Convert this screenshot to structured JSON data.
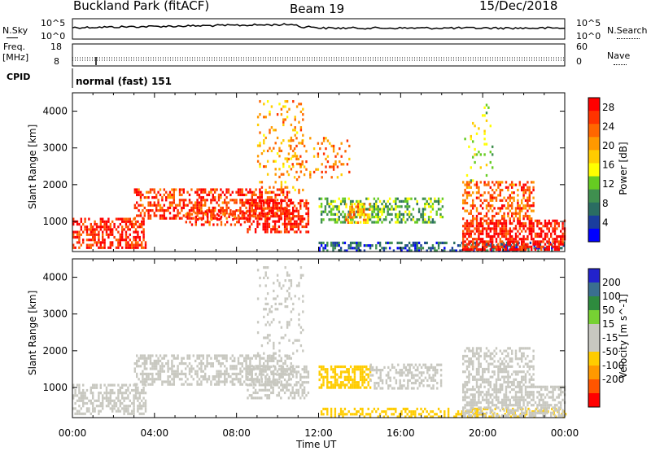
{
  "header": {
    "site": "Buckland Park (fitACF)",
    "beam": "Beam 19",
    "date": "15/Dec/2018"
  },
  "panels": {
    "nsky_label": "N.Sky",
    "nsky_top": "10^5",
    "nsky_bottom": "10^0",
    "nsearch_label": "N.Search",
    "freq_label_1": "Freq.",
    "freq_label_2": "[MHz]",
    "freq_top": "18",
    "freq_bottom": "8",
    "nave_label": "Nave",
    "nave_top": "60",
    "nave_bottom": "0",
    "cpid_label": "CPID",
    "cpid_value": "normal (fast) 151"
  },
  "colors": {
    "power": [
      "#0000ff",
      "#1a3d9e",
      "#2a6d62",
      "#3f8f4f",
      "#66cc22",
      "#ffff00",
      "#ffcc00",
      "#ff9900",
      "#ff6600",
      "#ff3300",
      "#ff0000"
    ],
    "velocity": [
      "#2222cc",
      "#3a6f8f",
      "#2e8b3e",
      "#77d133",
      "#c8c8c0",
      "#c8c8c0",
      "#ffcc00",
      "#ff9900",
      "#ff5500",
      "#ff0000"
    ],
    "gray_scatter": "#c8c8c0"
  },
  "chart_data": {
    "type": "heatmap",
    "x_axis": {
      "label": "Time UT",
      "range": [
        "00:00",
        "24:00"
      ],
      "ticks": [
        "00:00",
        "04:00",
        "08:00",
        "12:00",
        "16:00",
        "20:00",
        "00:00"
      ]
    },
    "y_axis": {
      "label": "Slant Range [km]",
      "range": [
        180,
        4500
      ],
      "ticks": [
        1000,
        2000,
        3000,
        4000
      ]
    },
    "power_panel": {
      "colorbar_label": "Power [dB]",
      "colorbar_ticks": [
        "4",
        "8",
        "12",
        "16",
        "20",
        "24",
        "28"
      ],
      "range": [
        0,
        30
      ],
      "regions": [
        {
          "t0": 0.0,
          "t1": 3.6,
          "r0": 250,
          "r1": 1100,
          "power": 27,
          "density": 0.55
        },
        {
          "t0": 3.0,
          "t1": 10.8,
          "r0": 1100,
          "r1": 1900,
          "power": 26,
          "density": 0.5
        },
        {
          "t0": 5.5,
          "t1": 8.5,
          "r0": 900,
          "r1": 1300,
          "power": 25,
          "density": 0.4
        },
        {
          "t0": 8.5,
          "t1": 11.5,
          "r0": 700,
          "r1": 1600,
          "power": 28,
          "density": 0.55
        },
        {
          "t0": 9.0,
          "t1": 11.2,
          "r0": 1800,
          "r1": 4300,
          "power": 20,
          "density": 0.15
        },
        {
          "t0": 10.5,
          "t1": 13.5,
          "r0": 2200,
          "r1": 3300,
          "power": 22,
          "density": 0.15
        },
        {
          "t0": 12.0,
          "t1": 18.0,
          "r0": 1000,
          "r1": 1650,
          "power": 11,
          "density": 0.45
        },
        {
          "t0": 13.3,
          "t1": 14.5,
          "r0": 1000,
          "r1": 1500,
          "power": 20,
          "density": 0.6
        },
        {
          "t0": 12.0,
          "t1": 24.0,
          "r0": 180,
          "r1": 450,
          "power": 6,
          "density": 0.45
        },
        {
          "t0": 19.0,
          "t1": 24.0,
          "r0": 250,
          "r1": 1050,
          "power": 28,
          "density": 0.65
        },
        {
          "t0": 19.0,
          "t1": 22.5,
          "r0": 1100,
          "r1": 2100,
          "power": 24,
          "density": 0.45
        },
        {
          "t0": 19.0,
          "t1": 20.5,
          "r0": 2100,
          "r1": 4200,
          "power": 14,
          "density": 0.08
        }
      ]
    },
    "velocity_panel": {
      "colorbar_label": "Velocity [m s^-1]",
      "colorbar_ticks": [
        "200",
        "100",
        "50",
        "15",
        "-15",
        "-50",
        "-100",
        "-200"
      ],
      "range": [
        -250,
        250
      ],
      "regions": [
        {
          "t0": 0.0,
          "t1": 3.6,
          "r0": 250,
          "r1": 1100,
          "velocity": 0,
          "density": 0.55
        },
        {
          "t0": 3.0,
          "t1": 10.8,
          "r0": 1100,
          "r1": 1900,
          "velocity": -5,
          "density": 0.5
        },
        {
          "t0": 8.5,
          "t1": 11.5,
          "r0": 700,
          "r1": 1600,
          "velocity": -30,
          "density": 0.5
        },
        {
          "t0": 9.0,
          "t1": 11.2,
          "r0": 1800,
          "r1": 4300,
          "velocity": 0,
          "density": 0.15
        },
        {
          "t0": 12.0,
          "t1": 14.5,
          "r0": 1000,
          "r1": 1600,
          "velocity": -60,
          "density": 0.6
        },
        {
          "t0": 14.5,
          "t1": 18.0,
          "r0": 1000,
          "r1": 1650,
          "velocity": 0,
          "density": 0.45
        },
        {
          "t0": 12.0,
          "t1": 24.0,
          "r0": 180,
          "r1": 450,
          "velocity": -60,
          "density": 0.4
        },
        {
          "t0": 19.0,
          "t1": 24.0,
          "r0": 250,
          "r1": 1050,
          "velocity": 0,
          "density": 0.6
        },
        {
          "t0": 19.0,
          "t1": 22.5,
          "r0": 1100,
          "r1": 2100,
          "velocity": 30,
          "density": 0.45
        }
      ]
    }
  }
}
